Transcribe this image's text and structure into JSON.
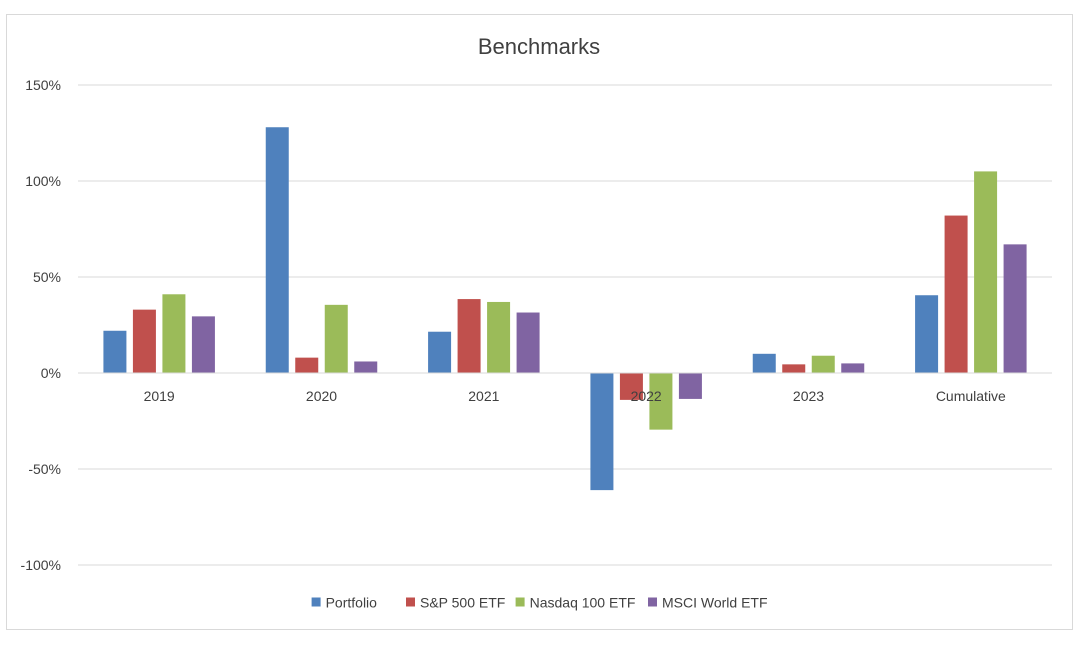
{
  "chart_data": {
    "type": "bar",
    "title": "Benchmarks",
    "xlabel": "",
    "ylabel": "",
    "categories": [
      "2019",
      "2020",
      "2021",
      "2022",
      "2023",
      "Cumulative"
    ],
    "y_ticks": [
      150,
      100,
      50,
      0,
      -50,
      -100
    ],
    "y_tick_labels": [
      "150%",
      "100%",
      "50%",
      "0%",
      "-50%",
      "-100%"
    ],
    "ylim": [
      -100,
      150
    ],
    "grid": true,
    "legend_position": "bottom",
    "series": [
      {
        "name": "Portfolio",
        "color": "#4f81bd",
        "values": [
          22,
          128,
          21.5,
          -61,
          10,
          40.5
        ]
      },
      {
        "name": "S&P 500 ETF",
        "color": "#c0504d",
        "values": [
          33,
          8,
          38.5,
          -14,
          4.5,
          82
        ]
      },
      {
        "name": "Nasdaq 100 ETF",
        "color": "#9bbb59",
        "values": [
          41,
          35.5,
          37,
          -29.5,
          9,
          105
        ]
      },
      {
        "name": "MSCI World ETF",
        "color": "#8064a2",
        "values": [
          29.5,
          6,
          31.5,
          -13.5,
          5,
          67
        ]
      }
    ]
  }
}
